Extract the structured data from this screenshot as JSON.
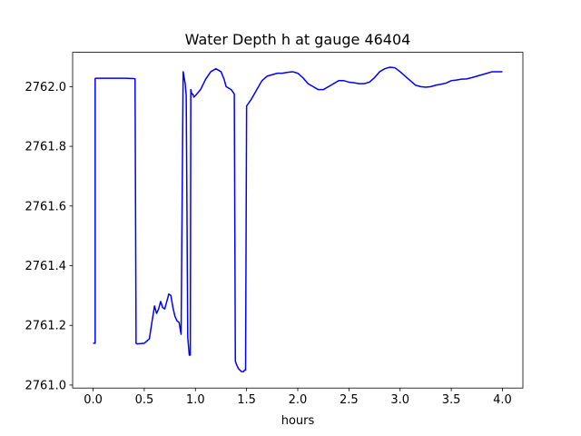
{
  "chart_data": {
    "type": "line",
    "title": "Water Depth h at gauge 46404",
    "xlabel": "hours",
    "ylabel": "",
    "xlim": [
      -0.2,
      4.2
    ],
    "ylim": [
      2760.99,
      2762.115
    ],
    "xticks": [
      0.0,
      0.5,
      1.0,
      1.5,
      2.0,
      2.5,
      3.0,
      3.5,
      4.0
    ],
    "xtick_labels": [
      "0.0",
      "0.5",
      "1.0",
      "1.5",
      "2.0",
      "2.5",
      "3.0",
      "3.5",
      "4.0"
    ],
    "yticks": [
      2761.0,
      2761.2,
      2761.4,
      2761.6,
      2761.8,
      2762.0
    ],
    "ytick_labels": [
      "2761.0",
      "2761.2",
      "2761.4",
      "2761.6",
      "2761.8",
      "2762.0"
    ],
    "grid": false,
    "colors": {
      "line": "#0000ff",
      "axes": "#000000",
      "background": "#ffffff"
    },
    "series": [
      {
        "x": [
          0.0,
          0.02,
          0.02,
          0.03,
          0.1,
          0.2,
          0.3,
          0.4,
          0.41,
          0.42,
          0.43,
          0.5,
          0.55,
          0.57,
          0.6,
          0.62,
          0.64,
          0.66,
          0.68,
          0.7,
          0.72,
          0.74,
          0.76,
          0.78,
          0.8,
          0.82,
          0.84,
          0.86,
          0.88,
          0.9,
          0.905,
          0.91,
          0.925,
          0.94,
          0.945,
          0.95,
          0.955,
          0.96,
          0.962,
          0.965,
          0.975,
          0.985,
          1.0,
          1.05,
          1.1,
          1.15,
          1.2,
          1.25,
          1.28,
          1.3,
          1.35,
          1.38,
          1.39,
          1.4,
          1.42,
          1.45,
          1.47,
          1.48,
          1.49,
          1.5,
          1.55,
          1.6,
          1.65,
          1.7,
          1.75,
          1.8,
          1.85,
          1.9,
          1.95,
          2.0,
          2.05,
          2.1,
          2.15,
          2.2,
          2.25,
          2.3,
          2.35,
          2.4,
          2.45,
          2.5,
          2.55,
          2.6,
          2.65,
          2.7,
          2.75,
          2.8,
          2.85,
          2.9,
          2.95,
          3.0,
          3.05,
          3.1,
          3.15,
          3.2,
          3.25,
          3.3,
          3.35,
          3.4,
          3.45,
          3.5,
          3.55,
          3.6,
          3.65,
          3.7,
          3.75,
          3.8,
          3.85,
          3.9,
          3.95,
          4.0
        ],
        "y": [
          2761.14,
          2761.14,
          2762.027,
          2762.028,
          2762.028,
          2762.028,
          2762.028,
          2762.027,
          2762.026,
          2761.14,
          2761.138,
          2761.14,
          2761.155,
          2761.2,
          2761.265,
          2761.24,
          2761.255,
          2761.28,
          2761.26,
          2761.255,
          2761.28,
          2761.305,
          2761.3,
          2761.26,
          2761.23,
          2761.215,
          2761.21,
          2761.17,
          2762.05,
          2762.01,
          2761.99,
          2761.97,
          2761.16,
          2761.1,
          2761.1,
          2761.1,
          2761.99,
          2761.98,
          2761.98,
          2761.975,
          2761.975,
          2761.965,
          2761.97,
          2761.99,
          2762.025,
          2762.05,
          2762.06,
          2762.05,
          2762.025,
          2762.0,
          2761.99,
          2761.975,
          2761.08,
          2761.07,
          2761.055,
          2761.045,
          2761.045,
          2761.05,
          2761.05,
          2761.935,
          2761.96,
          2761.99,
          2762.02,
          2762.035,
          2762.04,
          2762.045,
          2762.045,
          2762.048,
          2762.05,
          2762.045,
          2762.03,
          2762.01,
          2762.0,
          2761.99,
          2761.99,
          2762.0,
          2762.01,
          2762.02,
          2762.02,
          2762.015,
          2762.013,
          2762.01,
          2762.01,
          2762.015,
          2762.03,
          2762.05,
          2762.06,
          2762.065,
          2762.063,
          2762.05,
          2762.035,
          2762.02,
          2762.005,
          2762.0,
          2761.998,
          2762.0,
          2762.005,
          2762.008,
          2762.012,
          2762.02,
          2762.022,
          2762.025,
          2762.026,
          2762.03,
          2762.035,
          2762.04,
          2762.045,
          2762.05,
          2762.05,
          2762.05
        ]
      }
    ]
  }
}
